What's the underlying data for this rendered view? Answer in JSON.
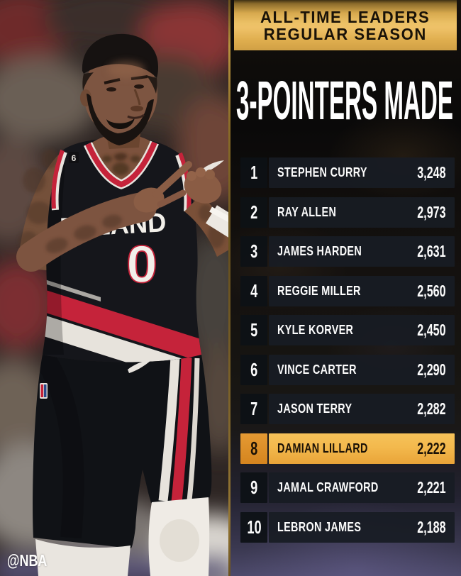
{
  "header": {
    "line1": "ALL-TIME LEADERS",
    "line2": "REGULAR SEASON"
  },
  "title": "3-POINTERS MADE",
  "leaderboard": {
    "rows": [
      {
        "rank": "1",
        "name": "STEPHEN CURRY",
        "value": "3,248",
        "highlight": false
      },
      {
        "rank": "2",
        "name": "RAY ALLEN",
        "value": "2,973",
        "highlight": false
      },
      {
        "rank": "3",
        "name": "JAMES HARDEN",
        "value": "2,631",
        "highlight": false
      },
      {
        "rank": "4",
        "name": "REGGIE MILLER",
        "value": "2,560",
        "highlight": false
      },
      {
        "rank": "5",
        "name": "KYLE KORVER",
        "value": "2,450",
        "highlight": false
      },
      {
        "rank": "6",
        "name": "VINCE CARTER",
        "value": "2,290",
        "highlight": false
      },
      {
        "rank": "7",
        "name": "JASON TERRY",
        "value": "2,282",
        "highlight": false
      },
      {
        "rank": "8",
        "name": "DAMIAN LILLARD",
        "value": "2,222",
        "highlight": true
      },
      {
        "rank": "9",
        "name": "JAMAL CRAWFORD",
        "value": "2,221",
        "highlight": false
      },
      {
        "rank": "10",
        "name": "LEBRON JAMES",
        "value": "2,188",
        "highlight": false
      }
    ]
  },
  "watermark": "@NBA",
  "photo": {
    "jersey_text": "RTLAND",
    "jersey_number": "0",
    "patch_number": "6"
  },
  "colors": {
    "header_gold": "#ecc166",
    "highlight_gold": "#f3b94d",
    "highlight_rank_orange": "#dd8f2b",
    "row_bg": "#181c23",
    "rank_bg": "#0d1116",
    "panel_bg": "#0e0c0a",
    "text_light": "#fcfcfc",
    "text_dark": "#1a1106",
    "blazers_red": "#c5233a"
  },
  "chart_data": {
    "type": "table",
    "title": "3-POINTERS MADE",
    "subtitle": "ALL-TIME LEADERS REGULAR SEASON",
    "columns": [
      "rank",
      "player",
      "three_pointers_made"
    ],
    "categories": [
      "Stephen Curry",
      "Ray Allen",
      "James Harden",
      "Reggie Miller",
      "Kyle Korver",
      "Vince Carter",
      "Jason Terry",
      "Damian Lillard",
      "Jamal Crawford",
      "LeBron James"
    ],
    "values": [
      3248,
      2973,
      2631,
      2560,
      2450,
      2290,
      2282,
      2222,
      2221,
      2188
    ],
    "highlighted_category": "Damian Lillard",
    "highlighted_value": 2222
  }
}
